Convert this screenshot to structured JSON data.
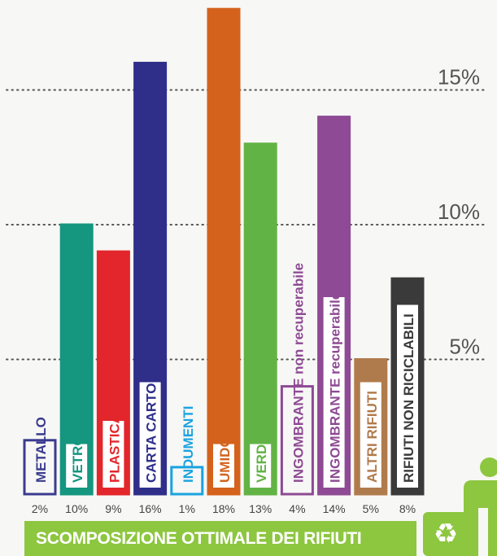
{
  "chart_data": {
    "type": "bar",
    "title": "SCOMPOSIZIONE OTTIMALE DEI RIFIUTI",
    "y_ticks": [
      "5%",
      "10%",
      "15%"
    ],
    "ylim": [
      0,
      18
    ],
    "grid": "dotted horizontal lines at tick values",
    "categories": [
      "METALLO",
      "VETRO",
      "PLASTICA",
      "CARTA CARTONE",
      "INDUMENTI",
      "UMIDO",
      "VERDE",
      "INGOMBRANTE non recuperabile",
      "INGOMBRANTE recuperabile",
      "ALTRI RIFIUTI",
      "RIFIUTI NON RICICLABILI"
    ],
    "values": [
      2,
      10,
      9,
      16,
      1,
      18,
      13,
      4,
      14,
      5,
      8
    ],
    "value_labels": [
      "2%",
      "10%",
      "9%",
      "16%",
      "1%",
      "18%",
      "13%",
      "4%",
      "14%",
      "5%",
      "8%"
    ],
    "colors": [
      "#3b3b8f",
      "#14967f",
      "#e3262b",
      "#2f2f8a",
      "#1aa3e0",
      "#d4621c",
      "#62b345",
      "#8e4a94",
      "#8e4a94",
      "#b07b4c",
      "#3a3a3a"
    ]
  },
  "icons": {
    "recycle": "recycle-icon",
    "person": "person-icon"
  },
  "accent": "#8dc63f"
}
